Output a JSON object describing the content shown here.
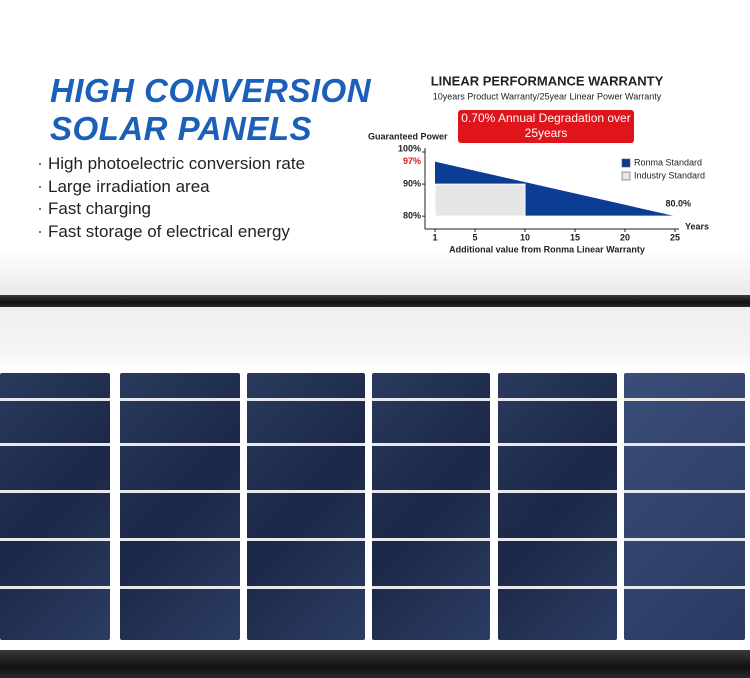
{
  "heading": [
    "HIGH CONVERSION",
    "SOLAR PANELS"
  ],
  "bullets": [
    "High photoelectric conversion rate",
    "Large irradiation area",
    "Fast charging",
    "Fast storage of electrical energy"
  ],
  "chart_data": {
    "type": "area",
    "title": "LINEAR PERFORMANCE WARRANTY",
    "subtitle": "10years Product Warranty/25year Linear Power Warranty",
    "annotation": "0.70% Annual Degradation over 25years",
    "ylabel": "Guaranteed Power",
    "xlabel": "Years",
    "caption": "Additional value from Ronma Linear Warranty",
    "xlim": [
      0,
      25
    ],
    "xticks": [
      1,
      5,
      10,
      15,
      20,
      25
    ],
    "ylim": [
      76,
      100
    ],
    "yticks": [
      {
        "value": 100,
        "label": "100%"
      },
      {
        "value": 90,
        "label": "90%"
      },
      {
        "value": 80,
        "label": "80%"
      }
    ],
    "legend": "upper right",
    "series": [
      {
        "name": "Ronma Standard",
        "color": "#0c3c94",
        "x": [
          1,
          25
        ],
        "values": [
          97,
          80
        ],
        "value_labels": [
          "97%",
          "80.0%"
        ],
        "label_color": "#e0141b"
      },
      {
        "name": "Industry Standard",
        "color": "#e6e6e6",
        "x": [
          1,
          10,
          10,
          25
        ],
        "values": [
          90,
          90,
          80,
          80
        ]
      }
    ]
  }
}
